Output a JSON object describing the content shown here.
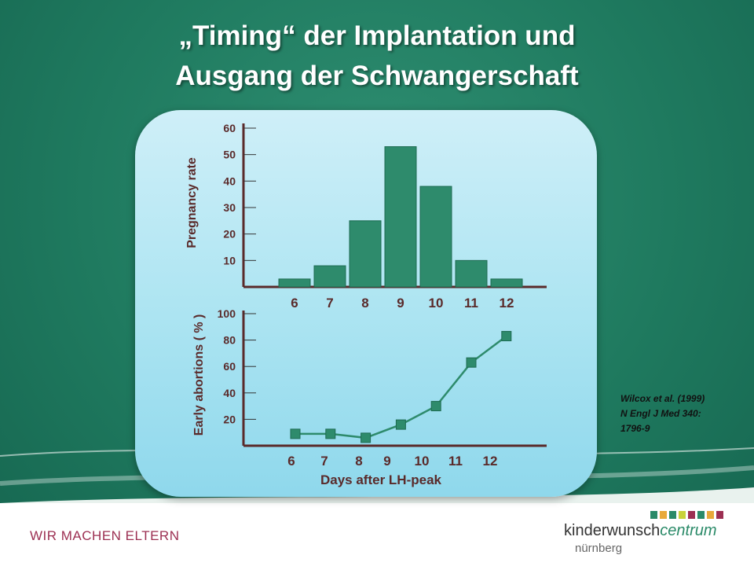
{
  "slide": {
    "title_line1": "„Timing“ der Implantation und",
    "title_line2": "Ausgang der Schwangerschaft",
    "citation_line1": "Wilcox et al.  (1999)",
    "citation_line2": "N Engl  J Med  340:",
    "citation_line3": "1796-9",
    "slogan": "WIR MACHEN ELTERN",
    "logo_part1": "kinderwunsch",
    "logo_part2": "centrum",
    "logo_city": "nürnberg",
    "logo_bar_colors": [
      "#2a8a68",
      "#e8a93a",
      "#2a8a68",
      "#c9d23a",
      "#9c2f52",
      "#2a8a68",
      "#e8a93a",
      "#9c2f52"
    ]
  },
  "colors": {
    "accent": "#2e8b6c",
    "axis": "#5a2a2a",
    "brand_red": "#9c2f52"
  },
  "chart_data": [
    {
      "type": "bar",
      "categories": [
        "6",
        "7",
        "8",
        "9",
        "10",
        "11",
        "12"
      ],
      "values": [
        3,
        8,
        25,
        53,
        38,
        10,
        3
      ],
      "ylabel": "Pregnancy rate",
      "yticks": [
        10,
        20,
        30,
        40,
        50,
        60
      ],
      "ylim": [
        0,
        60
      ]
    },
    {
      "type": "line",
      "categories": [
        "6",
        "7",
        "8",
        "9",
        "10",
        "11",
        "12"
      ],
      "x": [
        6,
        7,
        8,
        9,
        10,
        11,
        12
      ],
      "values": [
        9,
        9,
        6,
        16,
        30,
        63,
        83
      ],
      "xlabel": "Days after LH-peak",
      "ylabel": "Early abortions ( % )",
      "yticks": [
        20,
        40,
        60,
        80,
        100
      ],
      "ylim": [
        0,
        100
      ]
    }
  ]
}
